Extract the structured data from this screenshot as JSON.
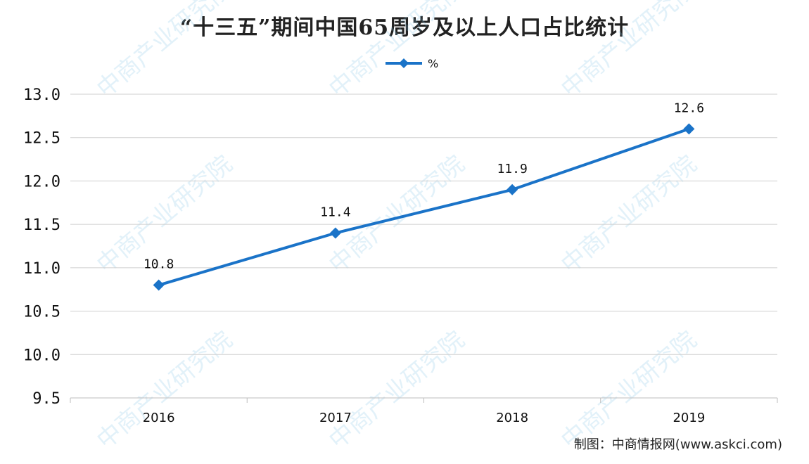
{
  "chart_data": {
    "type": "line",
    "title": "“十三五”期间中国65周岁及以上人口占比统计",
    "categories": [
      "2016",
      "2017",
      "2018",
      "2019"
    ],
    "series": [
      {
        "name": "%",
        "values": [
          10.8,
          11.4,
          11.9,
          12.6
        ]
      }
    ],
    "data_labels": [
      "10.8",
      "11.4",
      "11.9",
      "12.6"
    ],
    "ylim": [
      9.5,
      13.0
    ],
    "y_ticks": [
      "13.0",
      "12.5",
      "12.0",
      "11.5",
      "11.0",
      "10.5",
      "10.0",
      "9.5"
    ],
    "grid": true,
    "legend_position": "top-center",
    "line_color": "#1a73c8",
    "source": "制图：中商情报网(www.askci.com)",
    "watermark": "中商产业研究院"
  }
}
